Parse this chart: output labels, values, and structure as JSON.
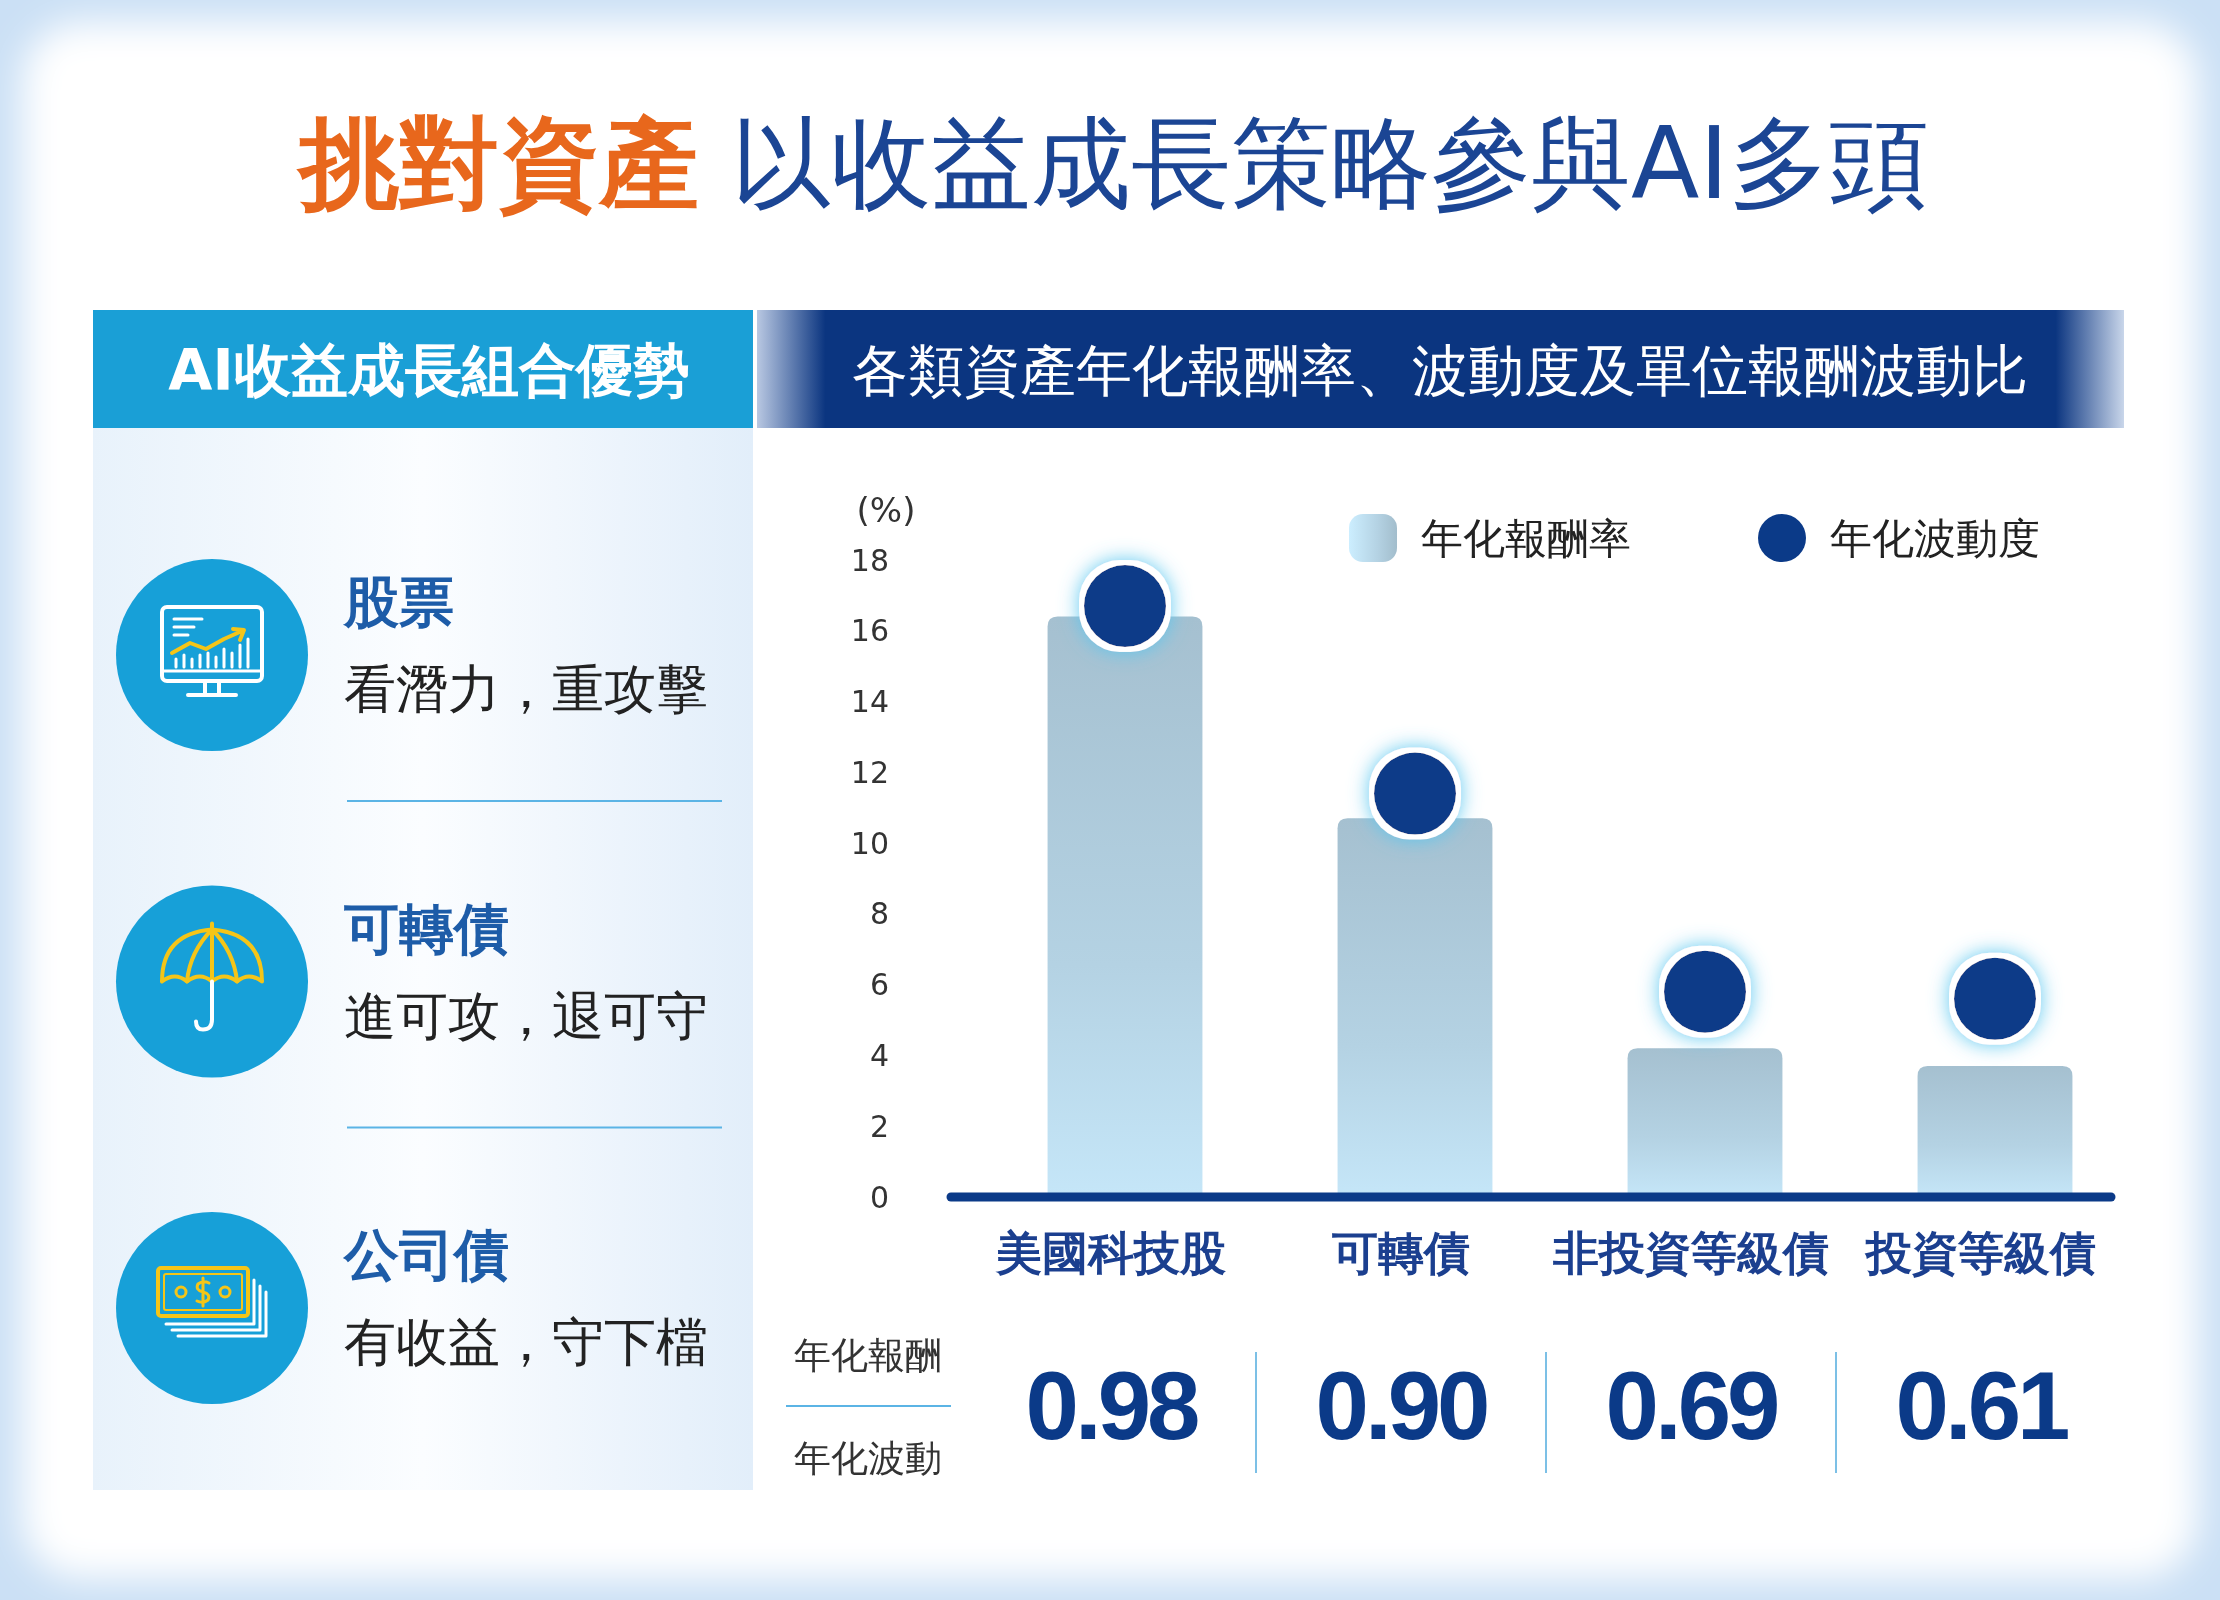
{
  "chart_data": [
    {
      "type": "other",
      "title": "AI收益成長組合優勢",
      "annotations": [
        "股票",
        "看潛力，重攻擊",
        "可轉債",
        "進可攻，退可守",
        "公司債",
        "有收益，守下檔"
      ]
    },
    {
      "type": "bar",
      "title": "挑對資產 以收益成長策略參與AI多頭",
      "subtitle": "各類資產年化報酬率、波動度及單位報酬波動比",
      "ylabel": "(%)",
      "categories": [
        "美國科技股",
        "可轉債",
        "非投資等級債",
        "投資等級債"
      ],
      "series": [
        {
          "name": "年化報酬率",
          "type": "bar",
          "color": "#b4d2e3",
          "values": [
            16.4,
            10.7,
            4.2,
            3.7
          ]
        },
        {
          "name": "年化波動度",
          "type": "scatter",
          "color": "#0b3a88",
          "values": [
            16.7,
            11.4,
            5.8,
            5.6
          ]
        }
      ],
      "ylim": [
        0,
        18
      ],
      "yticks": [
        0,
        2,
        4,
        6,
        8,
        10,
        12,
        14,
        16,
        18
      ],
      "legend": "top right",
      "marker": "circle",
      "annotations": [
        "年化報酬",
        "年化波動",
        "0.98",
        "0.90",
        "0.69",
        "0.61"
      ]
    }
  ]
}
